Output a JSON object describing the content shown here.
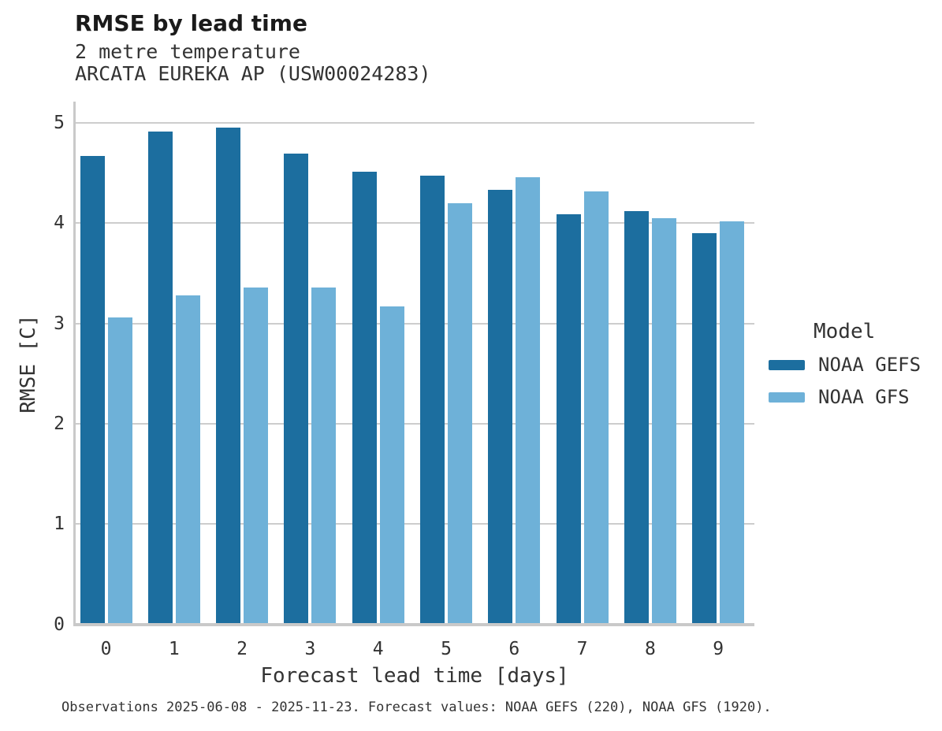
{
  "header": {
    "title": "RMSE by lead time",
    "subtitle1": "2 metre temperature",
    "subtitle2": "ARCATA EUREKA AP (USW00024283)"
  },
  "legend": {
    "title": "Model",
    "items": [
      {
        "label": "NOAA GEFS",
        "color": "#1c6e9f"
      },
      {
        "label": "NOAA GFS",
        "color": "#6eb1d8"
      }
    ]
  },
  "footer": "Observations 2025-06-08 - 2025-11-23. Forecast values: NOAA GEFS (220), NOAA GFS (1920).",
  "colors": {
    "gefs_bar": "#1c6e9f",
    "gfs_bar": "#6eb1d8",
    "gridline": "#cdcdcd",
    "axis_spine": "#c9c9c9",
    "text": "#333333",
    "title_text": "#1a1a1a"
  },
  "chart_data": {
    "type": "bar",
    "title": "RMSE by lead time",
    "subtitle": "2 metre temperature — ARCATA EUREKA AP (USW00024283)",
    "categories": [
      "0",
      "1",
      "2",
      "3",
      "4",
      "5",
      "6",
      "7",
      "8",
      "9"
    ],
    "series": [
      {
        "name": "NOAA GEFS",
        "color": "#1c6e9f",
        "values": [
          4.67,
          4.91,
          4.95,
          4.69,
          4.51,
          4.47,
          4.33,
          4.09,
          4.12,
          3.9
        ]
      },
      {
        "name": "NOAA GFS",
        "color": "#6eb1d8",
        "values": [
          3.06,
          3.28,
          3.36,
          3.36,
          3.17,
          4.2,
          4.46,
          4.32,
          4.05,
          4.02
        ]
      }
    ],
    "xlabel": "Forecast lead time [days]",
    "ylabel": "RMSE [C]",
    "ylim": [
      0,
      5
    ],
    "yticks": [
      0,
      1,
      2,
      3,
      4,
      5
    ],
    "grid": true,
    "legend_title": "Model",
    "legend_position": "right"
  }
}
